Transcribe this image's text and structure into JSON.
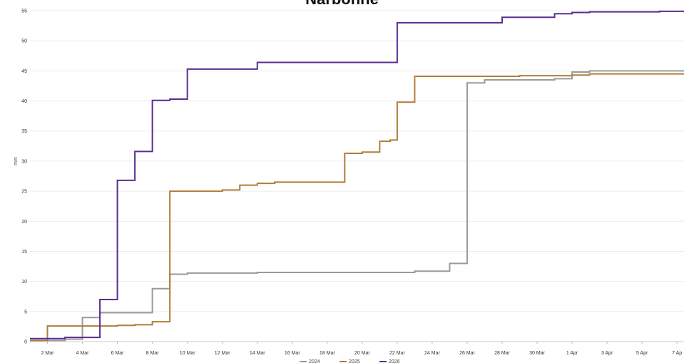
{
  "chart_data": {
    "type": "line",
    "step": true,
    "title": "Narbonne",
    "xlabel": "",
    "ylabel": "mm",
    "ylim": [
      0,
      55
    ],
    "yticks": [
      0,
      5,
      10,
      15,
      20,
      25,
      30,
      35,
      40,
      45,
      50,
      55
    ],
    "xlim": [
      0,
      37.4
    ],
    "xticks": [
      {
        "day": 1,
        "label": "2 Mar"
      },
      {
        "day": 3,
        "label": "4 Mar"
      },
      {
        "day": 5,
        "label": "6 Mar"
      },
      {
        "day": 7,
        "label": "8 Mar"
      },
      {
        "day": 9,
        "label": "10 Mar"
      },
      {
        "day": 11,
        "label": "12 Mar"
      },
      {
        "day": 13,
        "label": "14 Mar"
      },
      {
        "day": 15,
        "label": "16 Mar"
      },
      {
        "day": 17,
        "label": "18 Mar"
      },
      {
        "day": 19,
        "label": "20 Mar"
      },
      {
        "day": 21,
        "label": "22 Mar"
      },
      {
        "day": 23,
        "label": "24 Mar"
      },
      {
        "day": 25,
        "label": "26 Mar"
      },
      {
        "day": 27,
        "label": "28 Mar"
      },
      {
        "day": 29,
        "label": "30 Mar"
      },
      {
        "day": 31,
        "label": "1 Apr"
      },
      {
        "day": 33,
        "label": "3 Apr"
      },
      {
        "day": 35,
        "label": "5 Apr"
      },
      {
        "day": 37,
        "label": "7 Ap"
      }
    ],
    "grid": true,
    "legend_position": "bottom",
    "series": [
      {
        "name": "2024",
        "color": "#9a9a9a",
        "x": [
          0,
          2,
          3,
          4,
          7,
          8,
          9,
          13,
          22,
          24,
          25,
          26,
          30,
          31,
          32,
          37.4
        ],
        "y": [
          0.2,
          0.4,
          4.0,
          4.8,
          8.8,
          11.2,
          11.4,
          11.5,
          11.7,
          13.0,
          43.0,
          43.5,
          43.7,
          44.8,
          45.0,
          45.0
        ]
      },
      {
        "name": "2025",
        "color": "#b07d3a",
        "x": [
          0,
          1,
          5,
          6,
          7,
          8,
          11,
          12,
          13,
          14,
          18,
          19,
          20,
          20.6,
          21,
          22,
          28,
          31,
          32,
          37.4
        ],
        "y": [
          0.2,
          2.6,
          2.7,
          2.8,
          3.3,
          25.0,
          25.2,
          26.0,
          26.3,
          26.5,
          31.3,
          31.5,
          33.3,
          33.5,
          39.8,
          44.1,
          44.2,
          44.3,
          44.5,
          44.5
        ]
      },
      {
        "name": "2026",
        "color": "#5a2d91",
        "x": [
          0,
          2,
          4,
          5,
          6,
          7,
          8,
          9,
          13,
          21,
          27,
          30,
          31,
          32,
          36,
          37.4
        ],
        "y": [
          0.5,
          0.7,
          7.0,
          26.8,
          31.6,
          40.1,
          40.3,
          45.3,
          46.4,
          53.0,
          53.9,
          54.5,
          54.7,
          54.8,
          54.9,
          54.9
        ]
      }
    ]
  }
}
